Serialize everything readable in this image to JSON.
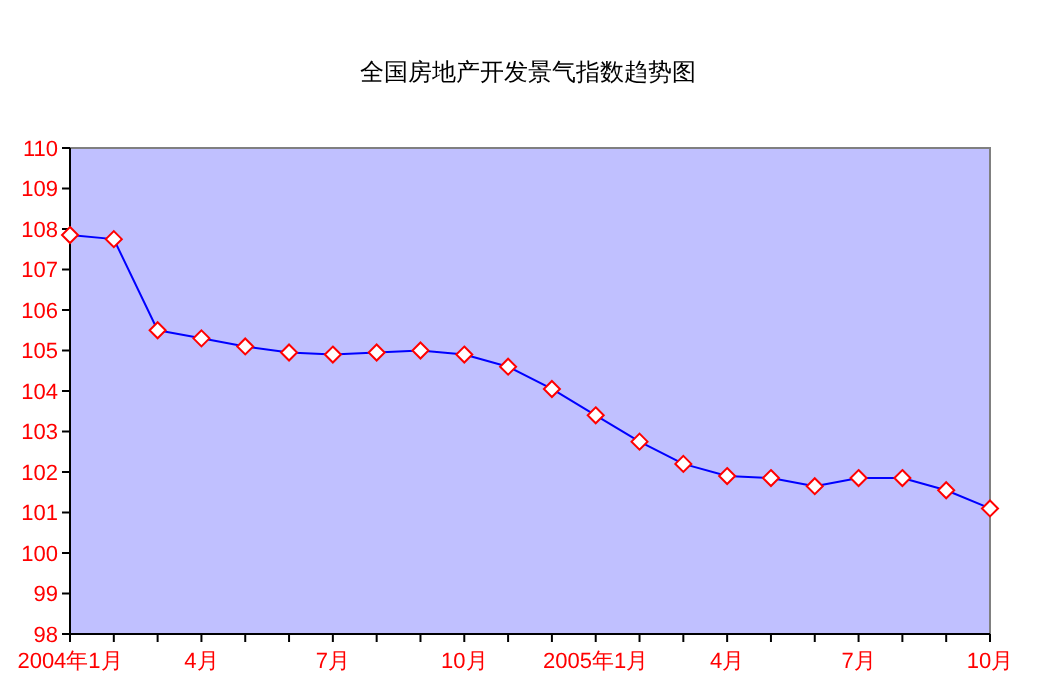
{
  "chart_data": {
    "type": "line",
    "title": "全国房地产开发景气指数趋势图",
    "categories": [
      "2004年1月",
      null,
      null,
      "4月",
      null,
      null,
      "7月",
      null,
      null,
      "10月",
      null,
      null,
      "2005年1月",
      null,
      null,
      "4月",
      null,
      null,
      "7月",
      null,
      null,
      "10月"
    ],
    "series": [
      {
        "color": "#0000ff",
        "values": [
          107.85,
          107.75,
          105.5,
          105.3,
          105.1,
          104.95,
          104.9,
          104.95,
          105.0,
          104.9,
          104.6,
          104.05,
          103.4,
          102.75,
          102.2,
          101.9,
          101.85,
          101.65,
          101.85,
          101.85,
          101.55,
          101.1
        ]
      }
    ],
    "ylim": [
      98,
      110
    ],
    "yticks": [
      98,
      99,
      100,
      101,
      102,
      103,
      104,
      105,
      106,
      107,
      108,
      109,
      110
    ],
    "grid": false,
    "marker": "diamond",
    "line_style": "solid"
  }
}
